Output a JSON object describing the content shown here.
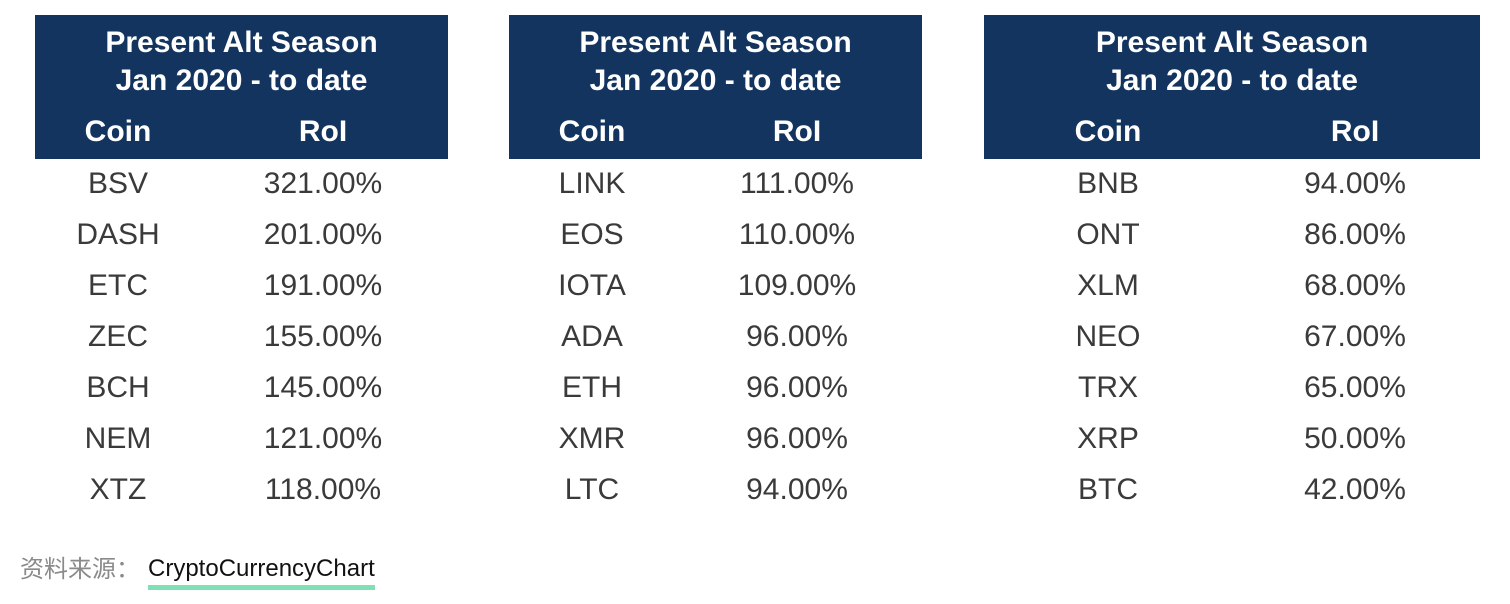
{
  "chart_data": [
    {
      "type": "table",
      "title": "Present Alt Season",
      "subtitle": "Jan 2020 - to date",
      "columns": [
        "Coin",
        "RoI"
      ],
      "rows": [
        [
          "BSV",
          "321.00%"
        ],
        [
          "DASH",
          "201.00%"
        ],
        [
          "ETC",
          "191.00%"
        ],
        [
          "ZEC",
          "155.00%"
        ],
        [
          "BCH",
          "145.00%"
        ],
        [
          "NEM",
          "121.00%"
        ],
        [
          "XTZ",
          "118.00%"
        ]
      ]
    },
    {
      "type": "table",
      "title": "Present Alt Season",
      "subtitle": "Jan 2020 - to date",
      "columns": [
        "Coin",
        "RoI"
      ],
      "rows": [
        [
          "LINK",
          "111.00%"
        ],
        [
          "EOS",
          "110.00%"
        ],
        [
          "IOTA",
          "109.00%"
        ],
        [
          "ADA",
          "96.00%"
        ],
        [
          "ETH",
          "96.00%"
        ],
        [
          "XMR",
          "96.00%"
        ],
        [
          "LTC",
          "94.00%"
        ]
      ]
    },
    {
      "type": "table",
      "title": "Present Alt Season",
      "subtitle": "Jan 2020 - to date",
      "columns": [
        "Coin",
        "RoI"
      ],
      "rows": [
        [
          "BNB",
          "94.00%"
        ],
        [
          "ONT",
          "86.00%"
        ],
        [
          "XLM",
          "68.00%"
        ],
        [
          "NEO",
          "67.00%"
        ],
        [
          "TRX",
          "65.00%"
        ],
        [
          "XRP",
          "50.00%"
        ],
        [
          "BTC",
          "42.00%"
        ]
      ]
    }
  ],
  "source": {
    "label": "资料来源：",
    "link_text": "CryptoCurrencyChart"
  },
  "colors": {
    "header_bg": "#12345e",
    "header_text": "#ffffff",
    "cell_text": "#3a3a3a",
    "link_underline": "#7fe0b5"
  }
}
